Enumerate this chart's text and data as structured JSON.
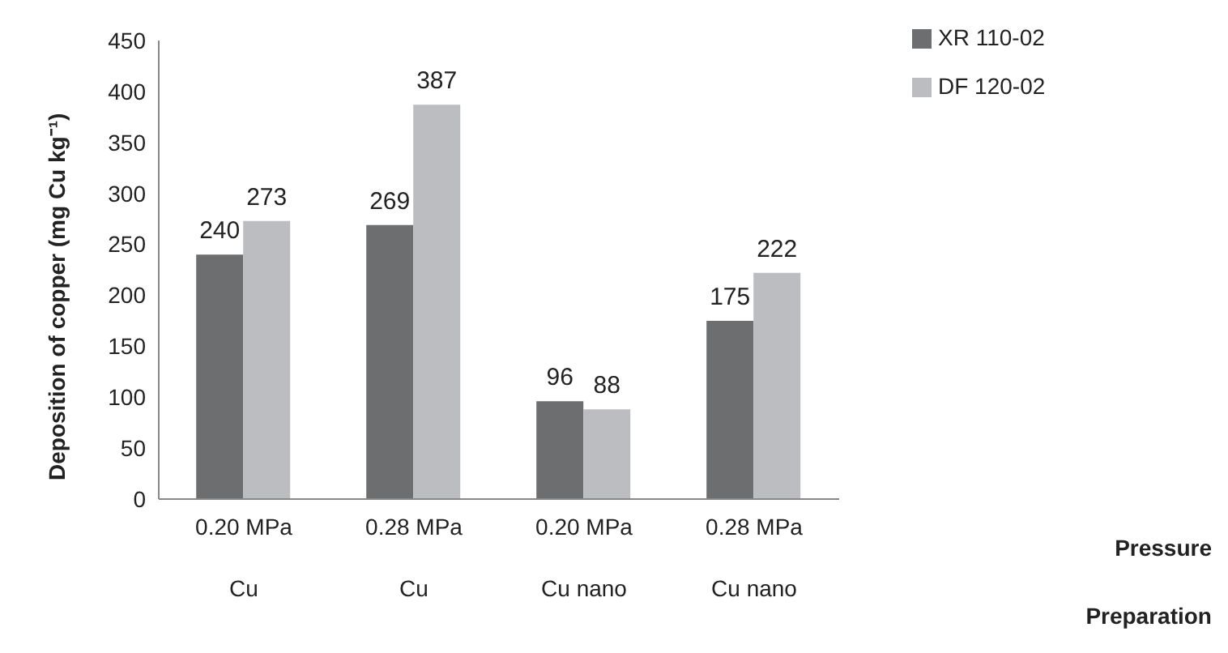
{
  "chart_data": {
    "type": "bar",
    "ylabel": "Deposition of copper (mg Cu kg⁻¹)",
    "categories": [
      "0.20 MPa\nCu",
      "0.28 MPa\nCu",
      "0.20 MPa\nCu nano",
      "0.28 MPa\nCu nano"
    ],
    "series": [
      {
        "name": "XR 110-02",
        "color": "#6d6e70",
        "values": [
          240,
          269,
          96,
          175
        ]
      },
      {
        "name": "DF 120-02",
        "color": "#bcbdc0",
        "values": [
          273,
          387,
          88,
          222
        ]
      }
    ],
    "ylim": [
      0,
      450
    ],
    "yticks": [
      0,
      50,
      100,
      150,
      200,
      250,
      300,
      350,
      400,
      450
    ],
    "grid": false,
    "legend": "top right",
    "data_labels": true,
    "annotations": [
      "Pressure",
      "Preparation"
    ]
  }
}
